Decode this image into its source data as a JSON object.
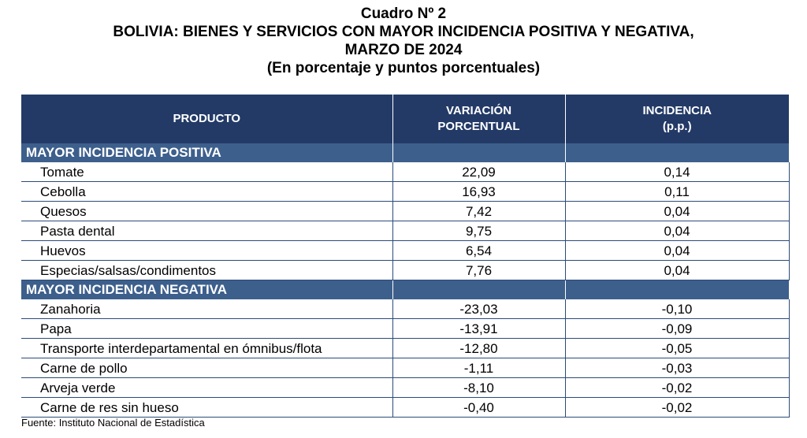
{
  "title": {
    "line1": "Cuadro Nº 2",
    "line2": "BOLIVIA: BIENES Y SERVICIOS CON MAYOR INCIDENCIA POSITIVA Y NEGATIVA,",
    "line3": "MARZO DE 2024",
    "line4": "(En porcentaje y puntos porcentuales)"
  },
  "columns": {
    "producto": "PRODUCTO",
    "variacion_line1": "VARIACIÓN",
    "variacion_line2": "PORCENTUAL",
    "incidencia_line1": "INCIDENCIA",
    "incidencia_line2": "(p.p.)"
  },
  "positive": {
    "label": "MAYOR INCIDENCIA POSITIVA",
    "rows": [
      {
        "producto": "Tomate",
        "variacion": "22,09",
        "incidencia": "0,14"
      },
      {
        "producto": "Cebolla",
        "variacion": "16,93",
        "incidencia": "0,11"
      },
      {
        "producto": "Quesos",
        "variacion": "7,42",
        "incidencia": "0,04"
      },
      {
        "producto": "Pasta dental",
        "variacion": "9,75",
        "incidencia": "0,04"
      },
      {
        "producto": "Huevos",
        "variacion": "6,54",
        "incidencia": "0,04"
      },
      {
        "producto": "Especias/salsas/condimentos",
        "variacion": "7,76",
        "incidencia": "0,04"
      }
    ]
  },
  "negative": {
    "label": "MAYOR INCIDENCIA NEGATIVA",
    "rows": [
      {
        "producto": "Zanahoria",
        "variacion": "-23,03",
        "incidencia": "-0,10"
      },
      {
        "producto": "Papa",
        "variacion": "-13,91",
        "incidencia": "-0,09"
      },
      {
        "producto": "Transporte interdepartamental en ómnibus/flota",
        "variacion": "-12,80",
        "incidencia": "-0,05"
      },
      {
        "producto": "Carne de pollo",
        "variacion": "-1,11",
        "incidencia": "-0,03"
      },
      {
        "producto": "Arveja verde",
        "variacion": "-8,10",
        "incidencia": "-0,02"
      },
      {
        "producto": "Carne de res sin hueso",
        "variacion": "-0,40",
        "incidencia": "-0,02"
      }
    ]
  },
  "source": "Fuente: Instituto Nacional de Estadística",
  "colors": {
    "header_bg": "#233a67",
    "section_bg": "#3d5f8c",
    "rule": "#2c4a7a"
  }
}
